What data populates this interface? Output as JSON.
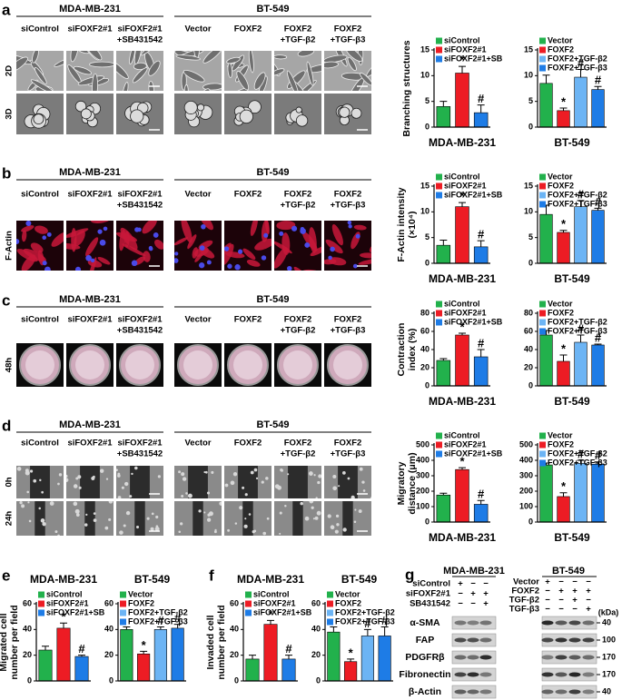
{
  "image_panels": [
    {
      "label": "a",
      "groups": [
        {
          "name": "MDA-MB-231",
          "columns": [
            [
              "siControl"
            ],
            [
              "siFOXF2#1"
            ],
            [
              "siFOXF2#1",
              "+SB431542"
            ]
          ]
        },
        {
          "name": "BT-549",
          "columns": [
            [
              "Vector"
            ],
            [
              "FOXF2"
            ],
            [
              "FOXF2",
              "+TGF-β2"
            ],
            [
              "FOXF2",
              "+TGF-β3"
            ]
          ]
        }
      ],
      "rows": [
        "2D",
        "3D"
      ]
    },
    {
      "label": "b",
      "groups": [
        {
          "name": "MDA-MB-231",
          "columns": [
            [
              "siControl"
            ],
            [
              "siFOXF2#1"
            ],
            [
              "siFOXF2#1",
              "+SB431542"
            ]
          ]
        },
        {
          "name": "BT-549",
          "columns": [
            [
              "Vector"
            ],
            [
              "FOXF2"
            ],
            [
              "FOXF2",
              "+TGF-β2"
            ],
            [
              "FOXF2",
              "+TGF-β3"
            ]
          ]
        }
      ],
      "rows": [
        "F-Actin"
      ]
    },
    {
      "label": "c",
      "groups": [
        {
          "name": "MDA-MB-231",
          "columns": [
            [
              "siControl"
            ],
            [
              "siFOXF2#1"
            ],
            [
              "siFOXF2#1",
              "+SB431542"
            ]
          ]
        },
        {
          "name": "BT-549",
          "columns": [
            [
              "Vector"
            ],
            [
              "FOXF2"
            ],
            [
              "FOXF2",
              "+TGF-β2"
            ],
            [
              "FOXF2",
              "+TGF-β3"
            ]
          ]
        }
      ],
      "rows": [
        "48h"
      ]
    },
    {
      "label": "d",
      "groups": [
        {
          "name": "MDA-MB-231",
          "columns": [
            [
              "siControl"
            ],
            [
              "siFOXF2#1"
            ],
            [
              "siFOXF2#1",
              "+SB431542"
            ]
          ]
        },
        {
          "name": "BT-549",
          "columns": [
            [
              "Vector"
            ],
            [
              "FOXF2"
            ],
            [
              "FOXF2",
              "+TGF-β2"
            ],
            [
              "FOXF2",
              "+TGF-β3"
            ]
          ]
        }
      ],
      "rows": [
        "0h",
        "24h"
      ]
    }
  ],
  "chart_data": [
    {
      "type": "bar",
      "ylabel": [
        "Branching structures"
      ],
      "xlabel": "MDA-MB-231",
      "categories": [
        "siControl",
        "siFOXF2#1",
        "siFOXF2#1+SB"
      ],
      "colors": [
        "#22b14c",
        "#ed1c24",
        "#1e7ce6"
      ],
      "values": [
        4,
        10.5,
        2.8
      ],
      "errors": [
        1,
        1.3,
        1.5
      ],
      "ylim": [
        0,
        15
      ],
      "yticks": [
        0,
        5,
        10,
        15
      ],
      "legend": "upper left",
      "annotations": [
        {
          "category": "siFOXF2#1",
          "text": "*"
        },
        {
          "category": "siFOXF2#1+SB",
          "text": "#"
        }
      ]
    },
    {
      "type": "bar",
      "xlabel": "BT-549",
      "categories": [
        "Vector",
        "FOXF2",
        "FOXF2+TGF-β2",
        "FOXF2+TGF-β3"
      ],
      "colors": [
        "#22b14c",
        "#ed1c24",
        "#6cb4f4",
        "#1e7ce6"
      ],
      "values": [
        8.5,
        3.2,
        9.7,
        7.3
      ],
      "errors": [
        1.6,
        0.5,
        1.5,
        0.6
      ],
      "ylim": [
        0,
        15
      ],
      "yticks": [
        0,
        5,
        10,
        15
      ],
      "legend": "upper left",
      "annotations": [
        {
          "category": "FOXF2",
          "text": "*"
        },
        {
          "category": "FOXF2+TGF-β2",
          "text": "#"
        },
        {
          "category": "FOXF2+TGF-β3",
          "text": "#"
        }
      ]
    },
    {
      "type": "bar",
      "ylabel": [
        "F-Actin intensity",
        "(×10⁴)"
      ],
      "xlabel": "MDA-MB-231",
      "categories": [
        "siControl",
        "siFOXF2#1",
        "siFOXF2#1+SB"
      ],
      "colors": [
        "#22b14c",
        "#ed1c24",
        "#1e7ce6"
      ],
      "values": [
        3.5,
        11,
        3.2
      ],
      "errors": [
        1,
        0.8,
        1.2
      ],
      "ylim": [
        0,
        15
      ],
      "yticks": [
        0,
        5,
        10,
        15
      ],
      "legend": "upper left",
      "annotations": [
        {
          "category": "siFOXF2#1",
          "text": "*"
        },
        {
          "category": "siFOXF2#1+SB",
          "text": "#"
        }
      ]
    },
    {
      "type": "bar",
      "xlabel": "BT-549",
      "categories": [
        "Vector",
        "FOXF2",
        "FOXF2+TGF-β2",
        "FOXF2+TGF-β3"
      ],
      "colors": [
        "#22b14c",
        "#ed1c24",
        "#6cb4f4",
        "#1e7ce6"
      ],
      "values": [
        9.5,
        6,
        11,
        10.3
      ],
      "errors": [
        1.8,
        0.4,
        1.2,
        0.4
      ],
      "ylim": [
        0,
        15
      ],
      "yticks": [
        0,
        5,
        10,
        15
      ],
      "legend": "upper left",
      "annotations": [
        {
          "category": "FOXF2",
          "text": "*"
        },
        {
          "category": "FOXF2+TGF-β2",
          "text": "#"
        },
        {
          "category": "FOXF2+TGF-β3",
          "text": "#"
        }
      ]
    },
    {
      "type": "bar",
      "ylabel": [
        "Contraction",
        "index (%)"
      ],
      "xlabel": "MDA-MB-231",
      "categories": [
        "siControl",
        "siFOXF2#1",
        "siFOXF2#1+SB"
      ],
      "colors": [
        "#22b14c",
        "#ed1c24",
        "#1e7ce6"
      ],
      "values": [
        28,
        56,
        32
      ],
      "errors": [
        2,
        2,
        8
      ],
      "ylim": [
        0,
        80
      ],
      "yticks": [
        0,
        20,
        40,
        60,
        80
      ],
      "legend": "upper left",
      "annotations": [
        {
          "category": "siFOXF2#1",
          "text": "*"
        },
        {
          "category": "siFOXF2#1+SB",
          "text": "#"
        }
      ]
    },
    {
      "type": "bar",
      "xlabel": "BT-549",
      "categories": [
        "Vector",
        "FOXF2",
        "FOXF2+TGF-β2",
        "FOXF2+TGF-β3"
      ],
      "colors": [
        "#22b14c",
        "#ed1c24",
        "#6cb4f4",
        "#1e7ce6"
      ],
      "values": [
        56,
        27,
        48,
        45
      ],
      "errors": [
        5,
        7,
        8,
        1
      ],
      "ylim": [
        0,
        80
      ],
      "yticks": [
        0,
        20,
        40,
        60,
        80
      ],
      "legend": "upper left",
      "annotations": [
        {
          "category": "FOXF2",
          "text": "*"
        },
        {
          "category": "FOXF2+TGF-β2",
          "text": "#"
        },
        {
          "category": "FOXF2+TGF-β3",
          "text": "#"
        }
      ]
    },
    {
      "type": "bar",
      "ylabel": [
        "Migratory",
        "distance (μm)"
      ],
      "xlabel": "MDA-MB-231",
      "categories": [
        "siControl",
        "siFOXF2#1",
        "siFOXF2#1+SB"
      ],
      "colors": [
        "#22b14c",
        "#ed1c24",
        "#1e7ce6"
      ],
      "values": [
        175,
        340,
        115
      ],
      "errors": [
        12,
        12,
        25
      ],
      "ylim": [
        0,
        500
      ],
      "yticks": [
        0,
        100,
        200,
        300,
        400,
        500
      ],
      "legend": "upper left",
      "annotations": [
        {
          "category": "siFOXF2#1",
          "text": "*"
        },
        {
          "category": "siFOXF2#1+SB",
          "text": "#"
        }
      ]
    },
    {
      "type": "bar",
      "xlabel": "BT-549",
      "categories": [
        "Vector",
        "FOXF2",
        "FOXF2+TGF-β2",
        "FOXF2+TGF-β3"
      ],
      "colors": [
        "#22b14c",
        "#ed1c24",
        "#6cb4f4",
        "#1e7ce6"
      ],
      "values": [
        370,
        165,
        380,
        375
      ],
      "errors": [
        12,
        25,
        20,
        15
      ],
      "ylim": [
        0,
        500
      ],
      "yticks": [
        0,
        100,
        200,
        300,
        400,
        500
      ],
      "legend": "upper left",
      "annotations": [
        {
          "category": "FOXF2",
          "text": "*"
        },
        {
          "category": "FOXF2+TGF-β2",
          "text": "#"
        },
        {
          "category": "FOXF2+TGF-β3",
          "text": "#"
        }
      ]
    },
    {
      "type": "bar",
      "panel_label": "e",
      "title": "MDA-MB-231",
      "ylabel": [
        "Migrated cell",
        "number per field"
      ],
      "categories": [
        "siControl",
        "siFOXF2#1",
        "siFOXF2#1+SB"
      ],
      "colors": [
        "#22b14c",
        "#ed1c24",
        "#1e7ce6"
      ],
      "values": [
        24,
        41,
        19
      ],
      "errors": [
        3,
        4,
        1
      ],
      "ylim": [
        0,
        60
      ],
      "yticks": [
        0,
        20,
        40,
        60
      ],
      "legend": "upper left",
      "annotations": [
        {
          "category": "siFOXF2#1",
          "text": "*"
        },
        {
          "category": "siFOXF2#1+SB",
          "text": "#"
        }
      ]
    },
    {
      "type": "bar",
      "title": "BT-549",
      "categories": [
        "Vector",
        "FOXF2",
        "FOXF2+TGF-β2",
        "FOXF2+TGF-β3"
      ],
      "colors": [
        "#22b14c",
        "#ed1c24",
        "#6cb4f4",
        "#1e7ce6"
      ],
      "values": [
        40,
        21,
        40,
        41
      ],
      "errors": [
        2,
        2,
        2,
        3
      ],
      "ylim": [
        0,
        60
      ],
      "yticks": [
        0,
        20,
        40,
        60
      ],
      "legend": "upper left",
      "annotations": [
        {
          "category": "FOXF2",
          "text": "*"
        },
        {
          "category": "FOXF2+TGF-β2",
          "text": "#"
        },
        {
          "category": "FOXF2+TGF-β3",
          "text": "#"
        }
      ]
    },
    {
      "type": "bar",
      "panel_label": "f",
      "title": "MDA-MB-231",
      "ylabel": [
        "Invaded cell",
        "number per field"
      ],
      "categories": [
        "siControl",
        "siFOXF2#1",
        "siFOXF2#1+SB"
      ],
      "colors": [
        "#22b14c",
        "#ed1c24",
        "#1e7ce6"
      ],
      "values": [
        17,
        44,
        17
      ],
      "errors": [
        3,
        3,
        3
      ],
      "ylim": [
        0,
        60
      ],
      "yticks": [
        0,
        20,
        40,
        60
      ],
      "legend": "upper left",
      "annotations": [
        {
          "category": "siFOXF2#1",
          "text": "*"
        },
        {
          "category": "siFOXF2#1+SB",
          "text": "#"
        }
      ]
    },
    {
      "type": "bar",
      "title": "BT-549",
      "categories": [
        "Vector",
        "FOXF2",
        "FOXF2+TGF-β2",
        "FOXF2+TGF-β3"
      ],
      "colors": [
        "#22b14c",
        "#ed1c24",
        "#6cb4f4",
        "#1e7ce6"
      ],
      "values": [
        38,
        15,
        35,
        35
      ],
      "errors": [
        4,
        2,
        5,
        7
      ],
      "ylim": [
        0,
        60
      ],
      "yticks": [
        0,
        20,
        40,
        60
      ],
      "legend": "upper left",
      "annotations": [
        {
          "category": "FOXF2",
          "text": "*"
        },
        {
          "category": "FOXF2+TGF-β2",
          "text": "#"
        },
        {
          "category": "FOXF2+TGF-β3",
          "text": "#"
        }
      ]
    }
  ],
  "blot": {
    "label": "g",
    "unit": "(kDa)",
    "groups": [
      {
        "name": "MDA-MB-231",
        "conditions": [
          {
            "name": "siControl",
            "signs": [
              "+",
              "−",
              "−"
            ]
          },
          {
            "name": "siFOXF2#1",
            "signs": [
              "−",
              "+",
              "+"
            ]
          },
          {
            "name": "SB431542",
            "signs": [
              "−",
              "−",
              "+"
            ]
          }
        ]
      },
      {
        "name": "BT-549",
        "conditions": [
          {
            "name": "Vector",
            "signs": [
              "+",
              "−",
              "−",
              "−"
            ]
          },
          {
            "name": "FOXF2",
            "signs": [
              "−",
              "+",
              "+",
              "+"
            ]
          },
          {
            "name": "TGF-β2",
            "signs": [
              "−",
              "−",
              "+",
              "−"
            ]
          },
          {
            "name": "TGF-β3",
            "signs": [
              "−",
              "−",
              "−",
              "+"
            ]
          }
        ]
      }
    ],
    "proteins": [
      {
        "name": "α-SMA",
        "kda": 40
      },
      {
        "name": "FAP",
        "kda": 100
      },
      {
        "name": "PDGFRβ",
        "kda": 170
      },
      {
        "name": "Fibronectin",
        "kda": 170
      },
      {
        "name": "β-Actin",
        "kda": 40
      }
    ]
  }
}
